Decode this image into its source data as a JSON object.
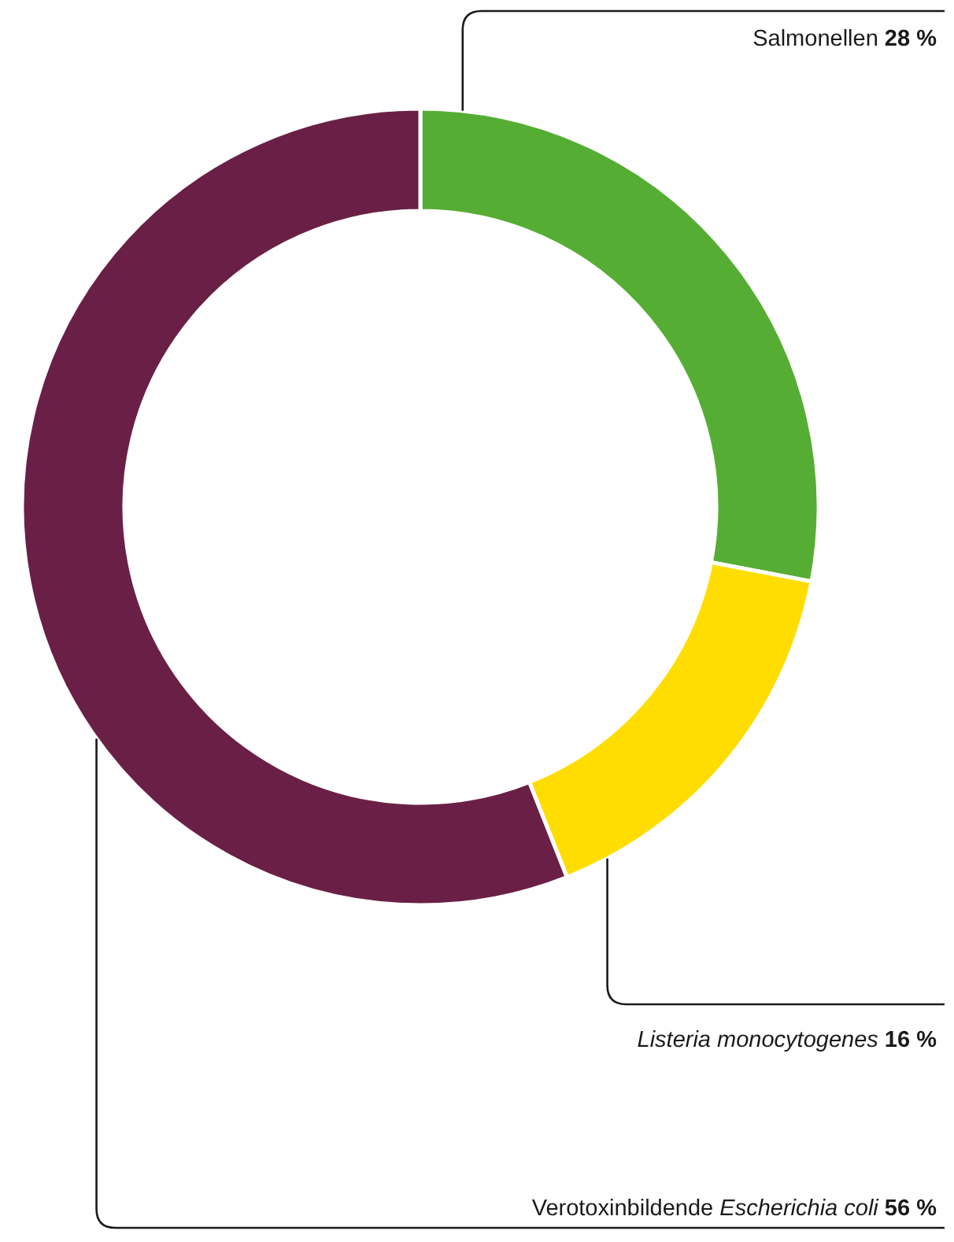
{
  "chart_data": {
    "type": "donut",
    "categories": [
      "Salmonellen",
      "Listeria monocytogenes",
      "Verotoxinbildende Escherichia coli"
    ],
    "values": [
      28,
      16,
      56
    ],
    "colors": [
      "#55ae33",
      "#ffdd00",
      "#6a2046"
    ],
    "value_labels": [
      "28 %",
      "16 %",
      "56 %"
    ]
  }
}
